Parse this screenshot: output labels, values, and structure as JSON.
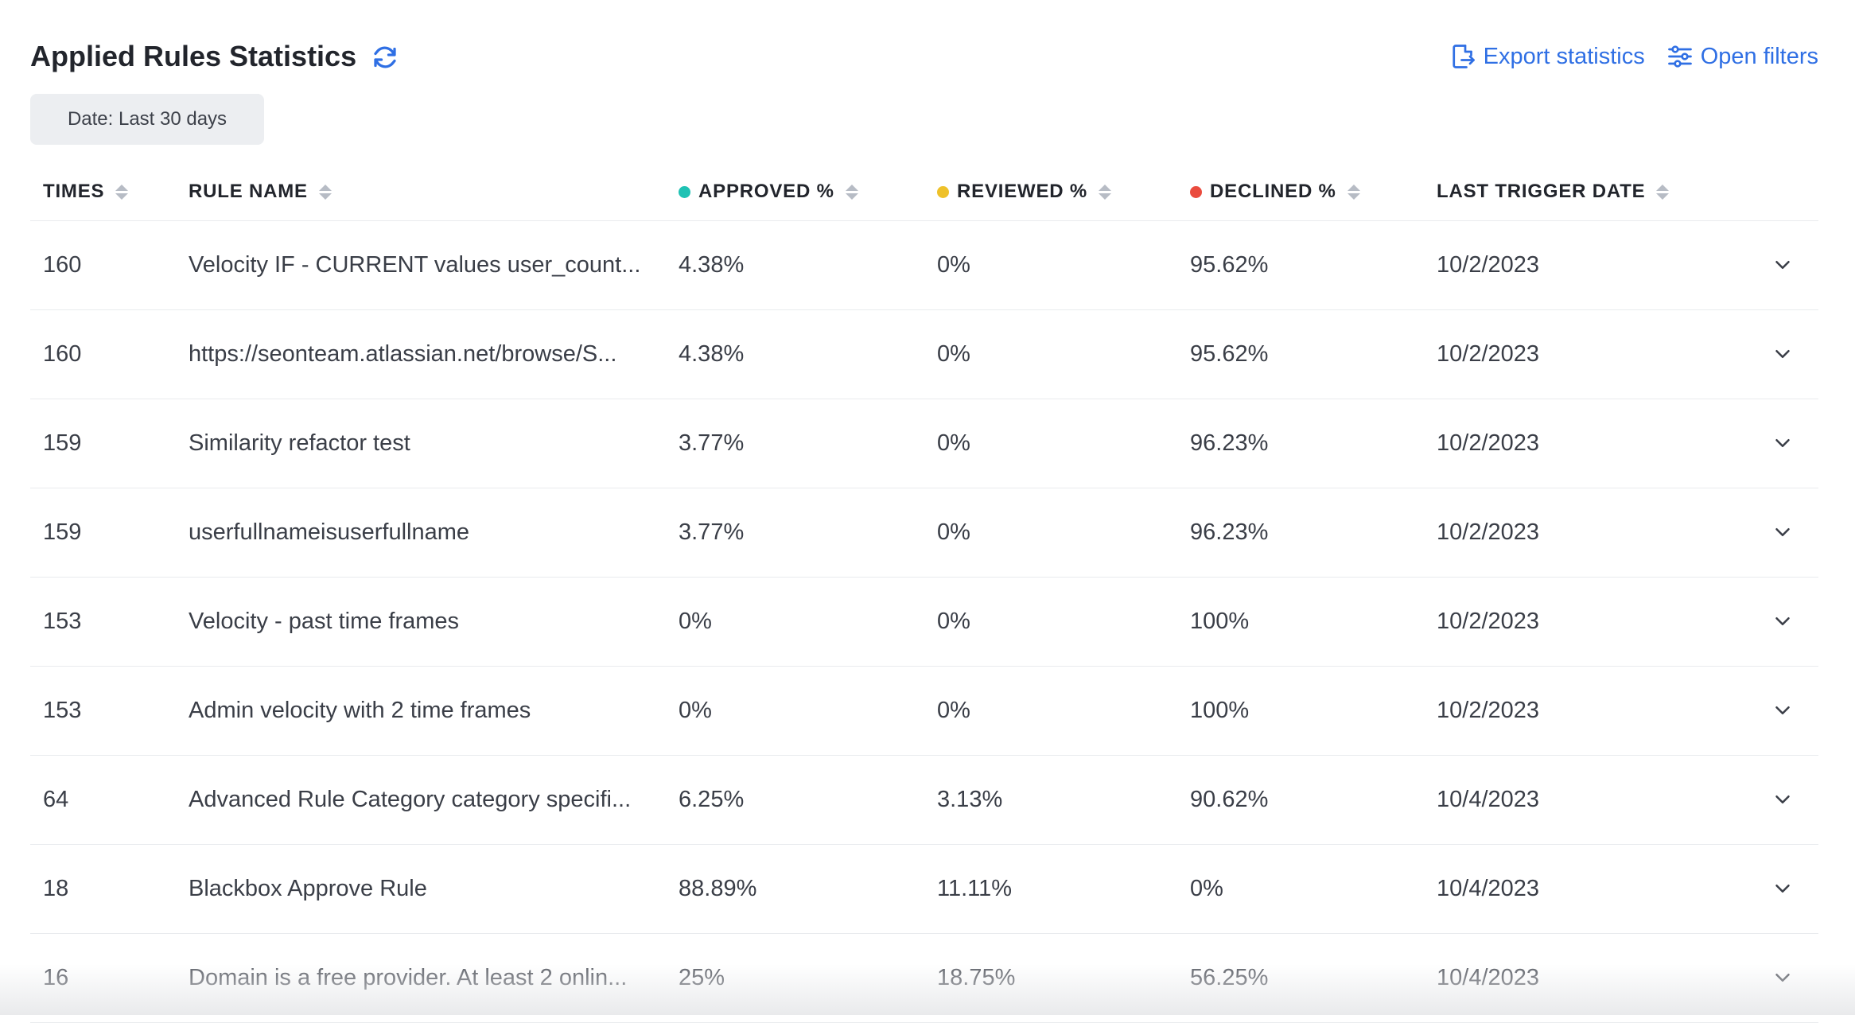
{
  "header": {
    "title": "Applied Rules Statistics",
    "export_label": "Export statistics",
    "filters_label": "Open filters"
  },
  "filter_chip": "Date: Last 30 days",
  "colors": {
    "accent": "#2f6fe4",
    "approved": "#1fc2b4",
    "reviewed": "#eec12a",
    "declined": "#ea4b3e"
  },
  "table": {
    "columns": {
      "times": "TIMES",
      "rule_name": "RULE NAME",
      "approved": "APPROVED %",
      "reviewed": "REVIEWED %",
      "declined": "DECLINED %",
      "last_trigger": "LAST TRIGGER DATE"
    },
    "rows": [
      {
        "times": "160",
        "rule_name": "Velocity IF - CURRENT values user_count...",
        "approved": "4.38%",
        "reviewed": "0%",
        "declined": "95.62%",
        "last_trigger": "10/2/2023"
      },
      {
        "times": "160",
        "rule_name": "https://seonteam.atlassian.net/browse/S...",
        "approved": "4.38%",
        "reviewed": "0%",
        "declined": "95.62%",
        "last_trigger": "10/2/2023"
      },
      {
        "times": "159",
        "rule_name": "Similarity refactor test",
        "approved": "3.77%",
        "reviewed": "0%",
        "declined": "96.23%",
        "last_trigger": "10/2/2023"
      },
      {
        "times": "159",
        "rule_name": "userfullnameisuserfullname",
        "approved": "3.77%",
        "reviewed": "0%",
        "declined": "96.23%",
        "last_trigger": "10/2/2023"
      },
      {
        "times": "153",
        "rule_name": "Velocity - past time frames",
        "approved": "0%",
        "reviewed": "0%",
        "declined": "100%",
        "last_trigger": "10/2/2023"
      },
      {
        "times": "153",
        "rule_name": "Admin velocity with 2 time frames",
        "approved": "0%",
        "reviewed": "0%",
        "declined": "100%",
        "last_trigger": "10/2/2023"
      },
      {
        "times": "64",
        "rule_name": "Advanced Rule Category category specifi...",
        "approved": "6.25%",
        "reviewed": "3.13%",
        "declined": "90.62%",
        "last_trigger": "10/4/2023"
      },
      {
        "times": "18",
        "rule_name": "Blackbox Approve Rule",
        "approved": "88.89%",
        "reviewed": "11.11%",
        "declined": "0%",
        "last_trigger": "10/4/2023"
      },
      {
        "times": "16",
        "rule_name": "Domain is a free provider. At least 2 onlin...",
        "approved": "25%",
        "reviewed": "18.75%",
        "declined": "56.25%",
        "last_trigger": "10/4/2023"
      }
    ]
  }
}
